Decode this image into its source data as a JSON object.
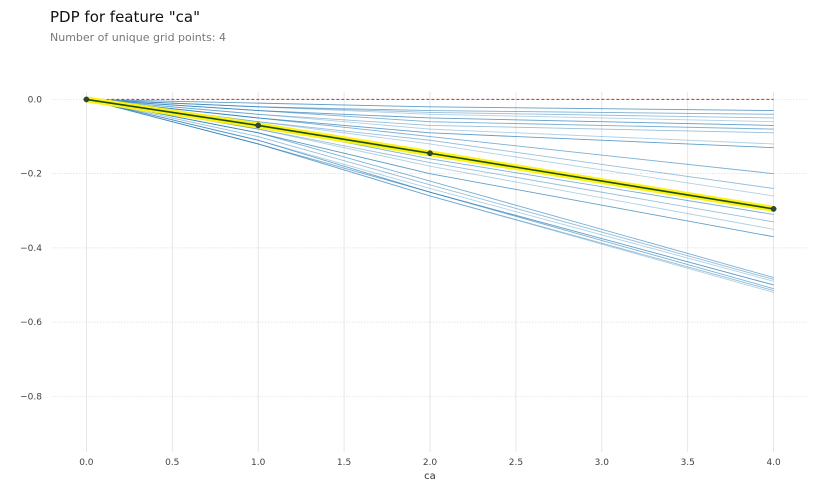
{
  "header": {
    "title": "PDP for feature \"ca\"",
    "subtitle": "Number of unique grid points: 4"
  },
  "chart_data": {
    "type": "line",
    "title": "PDP for feature \"ca\"",
    "subtitle": "Number of unique grid points: 4",
    "xlabel": "ca",
    "ylabel": "",
    "xlim": [
      -0.2,
      4.2
    ],
    "ylim": [
      -0.95,
      0.02
    ],
    "x_ticks": [
      0.0,
      0.5,
      1.0,
      1.5,
      2.0,
      2.5,
      3.0,
      3.5,
      4.0
    ],
    "x_tick_labels": [
      "0.0",
      "0.5",
      "1.0",
      "1.5",
      "2.0",
      "2.5",
      "3.0",
      "3.5",
      "4.0"
    ],
    "y_ticks": [
      0.0,
      -0.2,
      -0.4,
      -0.6,
      -0.8
    ],
    "y_tick_labels": [
      "0.0",
      "−0.2",
      "−0.4",
      "−0.6",
      "−0.8"
    ],
    "grid": true,
    "x": [
      0,
      1,
      2,
      4
    ],
    "pdp": {
      "values": [
        0.0,
        -0.07,
        -0.145,
        -0.295
      ],
      "color": "#1a4e07",
      "band_color": "#fef114"
    },
    "baseline": {
      "value": 0.0,
      "color": "#d62728"
    },
    "ice_color": "#1f77b4",
    "ice_lines": [
      [
        0.0,
        -0.12,
        -0.26,
        -0.52
      ],
      [
        0.0,
        -0.12,
        -0.26,
        -0.515
      ],
      [
        0.0,
        -0.12,
        -0.25,
        -0.51
      ],
      [
        0.0,
        -0.11,
        -0.25,
        -0.5
      ],
      [
        0.0,
        -0.11,
        -0.24,
        -0.49
      ],
      [
        0.0,
        -0.1,
        -0.23,
        -0.485
      ],
      [
        0.0,
        -0.09,
        -0.22,
        -0.48
      ],
      [
        0.0,
        -0.09,
        -0.2,
        -0.37
      ],
      [
        0.0,
        -0.08,
        -0.18,
        -0.35
      ],
      [
        0.0,
        -0.08,
        -0.17,
        -0.33
      ],
      [
        0.0,
        -0.07,
        -0.16,
        -0.31
      ],
      [
        0.0,
        -0.07,
        -0.14,
        -0.29
      ],
      [
        0.0,
        -0.06,
        -0.12,
        -0.26
      ],
      [
        0.0,
        -0.06,
        -0.11,
        -0.24
      ],
      [
        0.0,
        -0.05,
        -0.1,
        -0.2
      ],
      [
        0.0,
        -0.05,
        -0.09,
        -0.13
      ],
      [
        0.0,
        -0.04,
        -0.08,
        -0.12
      ],
      [
        0.0,
        -0.04,
        -0.07,
        -0.09
      ],
      [
        0.0,
        -0.03,
        -0.06,
        -0.08
      ],
      [
        0.0,
        -0.03,
        -0.05,
        -0.07
      ],
      [
        0.0,
        -0.02,
        -0.04,
        -0.06
      ],
      [
        0.0,
        -0.02,
        -0.035,
        -0.05
      ],
      [
        0.0,
        -0.02,
        -0.03,
        -0.04
      ],
      [
        0.0,
        -0.01,
        -0.02,
        -0.03
      ]
    ]
  }
}
